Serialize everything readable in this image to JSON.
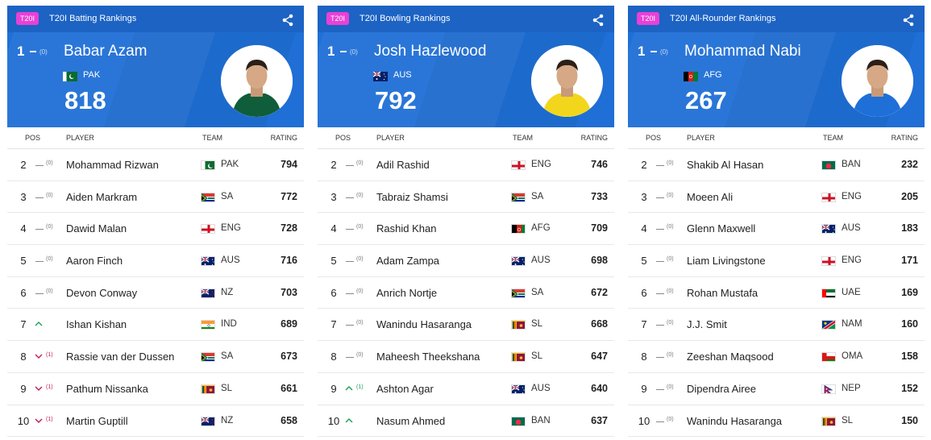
{
  "panels": [
    {
      "badge": "T20I",
      "title": "T20I Batting Rankings",
      "top": {
        "pos": "1",
        "change": "(0)",
        "name": "Babar Azam",
        "team": "PAK",
        "flag": "pak",
        "rating": "818",
        "kit": "#0f5d3a"
      },
      "headers": {
        "pos": "POS",
        "player": "PLAYER",
        "team": "TEAM",
        "rating": "RATING"
      },
      "rows": [
        {
          "pos": "2",
          "move": "same",
          "change": "(0)",
          "name": "Mohammad Rizwan",
          "flag": "pak",
          "team": "PAK",
          "rating": "794"
        },
        {
          "pos": "3",
          "move": "same",
          "change": "(0)",
          "name": "Aiden Markram",
          "flag": "sa",
          "team": "SA",
          "rating": "772"
        },
        {
          "pos": "4",
          "move": "same",
          "change": "(0)",
          "name": "Dawid Malan",
          "flag": "eng",
          "team": "ENG",
          "rating": "728"
        },
        {
          "pos": "5",
          "move": "same",
          "change": "(0)",
          "name": "Aaron Finch",
          "flag": "aus",
          "team": "AUS",
          "rating": "716"
        },
        {
          "pos": "6",
          "move": "same",
          "change": "(0)",
          "name": "Devon Conway",
          "flag": "nz",
          "team": "NZ",
          "rating": "703"
        },
        {
          "pos": "7",
          "move": "up",
          "change": "",
          "name": "Ishan Kishan",
          "flag": "ind",
          "team": "IND",
          "rating": "689"
        },
        {
          "pos": "8",
          "move": "down",
          "change": "(1)",
          "name": "Rassie van der Dussen",
          "flag": "sa",
          "team": "SA",
          "rating": "673"
        },
        {
          "pos": "9",
          "move": "down",
          "change": "(1)",
          "name": "Pathum Nissanka",
          "flag": "sl",
          "team": "SL",
          "rating": "661"
        },
        {
          "pos": "10",
          "move": "down",
          "change": "(1)",
          "name": "Martin Guptill",
          "flag": "nz",
          "team": "NZ",
          "rating": "658"
        }
      ]
    },
    {
      "badge": "T20I",
      "title": "T20I Bowling Rankings",
      "top": {
        "pos": "1",
        "change": "(0)",
        "name": "Josh Hazlewood",
        "team": "AUS",
        "flag": "aus",
        "rating": "792",
        "kit": "#f2d61c"
      },
      "headers": {
        "pos": "POS",
        "player": "PLAYER",
        "team": "TEAM",
        "rating": "RATING"
      },
      "rows": [
        {
          "pos": "2",
          "move": "same",
          "change": "(0)",
          "name": "Adil Rashid",
          "flag": "eng",
          "team": "ENG",
          "rating": "746"
        },
        {
          "pos": "3",
          "move": "same",
          "change": "(0)",
          "name": "Tabraiz Shamsi",
          "flag": "sa",
          "team": "SA",
          "rating": "733"
        },
        {
          "pos": "4",
          "move": "same",
          "change": "(0)",
          "name": "Rashid Khan",
          "flag": "afg",
          "team": "AFG",
          "rating": "709"
        },
        {
          "pos": "5",
          "move": "same",
          "change": "(0)",
          "name": "Adam Zampa",
          "flag": "aus",
          "team": "AUS",
          "rating": "698"
        },
        {
          "pos": "6",
          "move": "same",
          "change": "(0)",
          "name": "Anrich Nortje",
          "flag": "sa",
          "team": "SA",
          "rating": "672"
        },
        {
          "pos": "7",
          "move": "same",
          "change": "(0)",
          "name": "Wanindu Hasaranga",
          "flag": "sl",
          "team": "SL",
          "rating": "668"
        },
        {
          "pos": "8",
          "move": "same",
          "change": "(0)",
          "name": "Maheesh Theekshana",
          "flag": "sl",
          "team": "SL",
          "rating": "647"
        },
        {
          "pos": "9",
          "move": "up",
          "change": "(1)",
          "name": "Ashton Agar",
          "flag": "aus",
          "team": "AUS",
          "rating": "640"
        },
        {
          "pos": "10",
          "move": "up",
          "change": "",
          "name": "Nasum Ahmed",
          "flag": "ban",
          "team": "BAN",
          "rating": "637"
        }
      ]
    },
    {
      "badge": "T20I",
      "title": "T20I All-Rounder Rankings",
      "top": {
        "pos": "1",
        "change": "(0)",
        "name": "Mohammad Nabi",
        "team": "AFG",
        "flag": "afg",
        "rating": "267",
        "kit": "#1e6fd8"
      },
      "headers": {
        "pos": "POS",
        "player": "PLAYER",
        "team": "TEAM",
        "rating": "RATING"
      },
      "rows": [
        {
          "pos": "2",
          "move": "same",
          "change": "(0)",
          "name": "Shakib Al Hasan",
          "flag": "ban",
          "team": "BAN",
          "rating": "232"
        },
        {
          "pos": "3",
          "move": "same",
          "change": "(0)",
          "name": "Moeen Ali",
          "flag": "eng",
          "team": "ENG",
          "rating": "205"
        },
        {
          "pos": "4",
          "move": "same",
          "change": "(0)",
          "name": "Glenn Maxwell",
          "flag": "aus",
          "team": "AUS",
          "rating": "183"
        },
        {
          "pos": "5",
          "move": "same",
          "change": "(0)",
          "name": "Liam Livingstone",
          "flag": "eng",
          "team": "ENG",
          "rating": "171"
        },
        {
          "pos": "6",
          "move": "same",
          "change": "(0)",
          "name": "Rohan Mustafa",
          "flag": "uae",
          "team": "UAE",
          "rating": "169"
        },
        {
          "pos": "7",
          "move": "same",
          "change": "(0)",
          "name": "J.J. Smit",
          "flag": "nam",
          "team": "NAM",
          "rating": "160"
        },
        {
          "pos": "8",
          "move": "same",
          "change": "(0)",
          "name": "Zeeshan Maqsood",
          "flag": "oma",
          "team": "OMA",
          "rating": "158"
        },
        {
          "pos": "9",
          "move": "same",
          "change": "(0)",
          "name": "Dipendra Airee",
          "flag": "nep",
          "team": "NEP",
          "rating": "152"
        },
        {
          "pos": "10",
          "move": "same",
          "change": "(0)",
          "name": "Wanindu Hasaranga",
          "flag": "sl",
          "team": "SL",
          "rating": "150"
        }
      ]
    }
  ],
  "colors": {
    "hero": "#1f6fd6",
    "badge": "#e940d6",
    "down": "#c2185b",
    "up": "#19a05a"
  },
  "icons": {
    "share": "share-icon",
    "same": "dash-icon",
    "up": "chevron-up-icon",
    "down": "chevron-down-icon"
  }
}
